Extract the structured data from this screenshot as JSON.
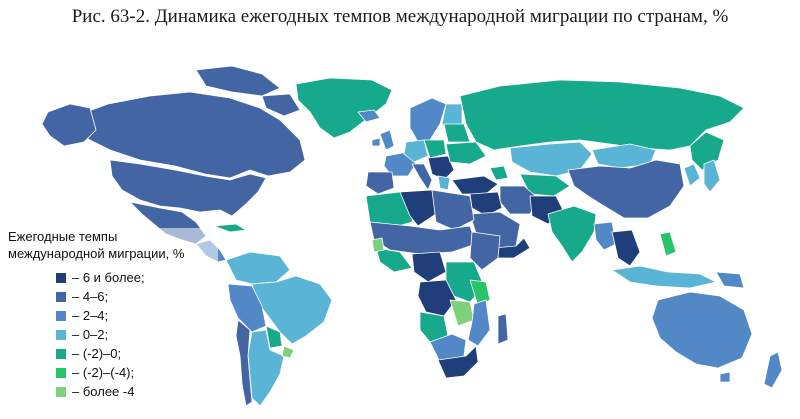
{
  "title": "Рис. 63-2. Динамика ежегодных темпов международной миграции по странам, %",
  "legend": {
    "title_line1": "Ежегодные темпы",
    "title_line2": "международной миграции, %",
    "items": [
      {
        "label": "– 6 и более;",
        "color": "#203f7a"
      },
      {
        "label": "– 4–6;",
        "color": "#4465a4"
      },
      {
        "label": "– 2–4;",
        "color": "#5288c6"
      },
      {
        "label": "– 0–2;",
        "color": "#5ab4d6"
      },
      {
        "label": "– (-2)–0;",
        "color": "#16a98c"
      },
      {
        "label": "– (-2)–(-4);",
        "color": "#27c46c"
      },
      {
        "label": "– более -4",
        "color": "#7ed17a"
      }
    ]
  },
  "colors": {
    "background": "#ffffff",
    "ocean": "#ffffff",
    "border": "#ffffff"
  }
}
